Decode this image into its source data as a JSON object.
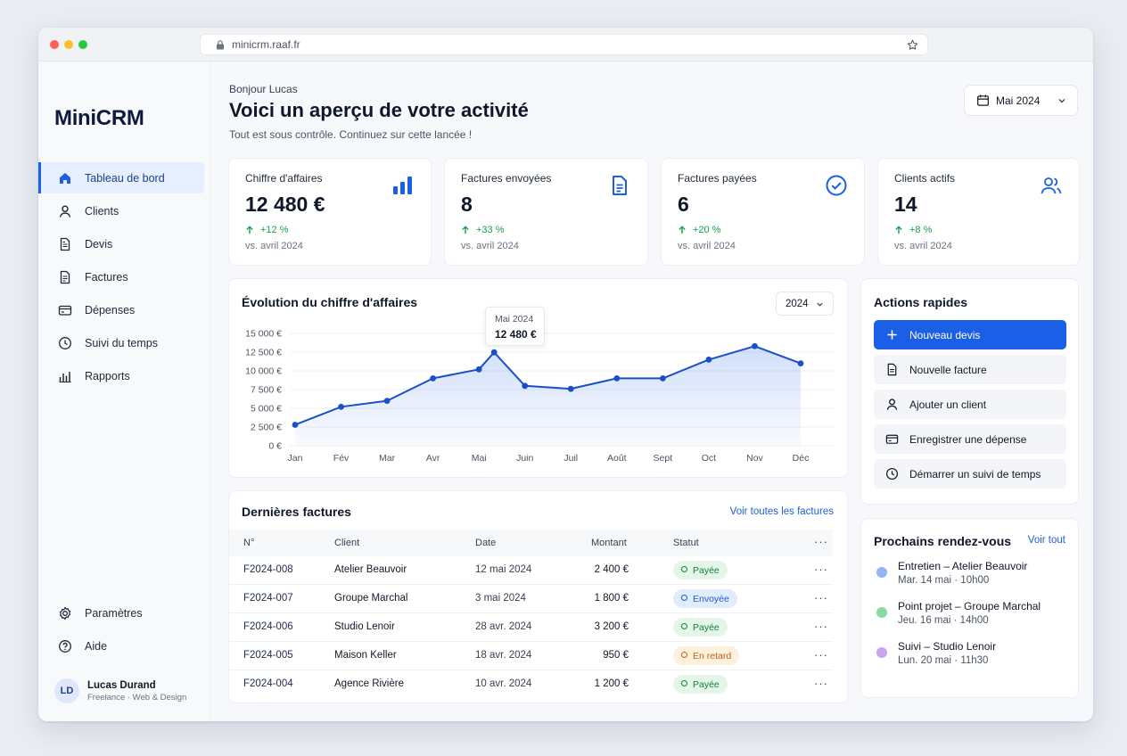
{
  "browser": {
    "url": "minicrm.raaf.fr"
  },
  "app": {
    "name": "MiniCRM"
  },
  "sidebar": {
    "items": [
      {
        "label": "Tableau de bord",
        "icon": "home-icon"
      },
      {
        "label": "Clients",
        "icon": "user-icon"
      },
      {
        "label": "Devis",
        "icon": "document-icon"
      },
      {
        "label": "Factures",
        "icon": "invoice-icon"
      },
      {
        "label": "Dépenses",
        "icon": "card-icon"
      },
      {
        "label": "Suivi du temps",
        "icon": "clock-icon"
      },
      {
        "label": "Rapports",
        "icon": "bar-chart-icon"
      }
    ],
    "bottom": [
      {
        "label": "Paramètres",
        "icon": "gear-icon"
      },
      {
        "label": "Aide",
        "icon": "help-icon"
      }
    ],
    "user": {
      "initials": "LD",
      "name": "Lucas Durand",
      "role": "Freelance · Web & Design"
    }
  },
  "header": {
    "greeting": "Bonjour Lucas",
    "title": "Voici un aperçu de votre activité",
    "subtitle": "Tout est sous contrôle. Continuez sur cette lancée !",
    "period": "Mai 2024"
  },
  "kpis": [
    {
      "label": "Chiffre d'affaires",
      "value": "12 480 €",
      "delta": "+12 %",
      "compare": "vs. avril 2024",
      "icon": "bar-chart-icon"
    },
    {
      "label": "Factures envoyées",
      "value": "8",
      "delta": "+33 %",
      "compare": "vs. avril 2024",
      "icon": "document-icon"
    },
    {
      "label": "Factures payées",
      "value": "6",
      "delta": "+20 %",
      "compare": "vs. avril 2024",
      "icon": "check-circle-icon"
    },
    {
      "label": "Clients actifs",
      "value": "14",
      "delta": "+8 %",
      "compare": "vs. avril 2024",
      "icon": "users-icon"
    }
  ],
  "revenue_chart": {
    "title": "Évolution du chiffre d'affaires",
    "year": "2024",
    "tooltip": {
      "label": "Mai 2024",
      "value": "12 480 €"
    }
  },
  "chart_data": {
    "type": "area",
    "title": "Évolution du chiffre d'affaires",
    "categories": [
      "Jan",
      "Fév",
      "Mar",
      "Avr",
      "Mai",
      "Juin",
      "Juil",
      "Août",
      "Sept",
      "Oct",
      "Nov",
      "Déc"
    ],
    "x": [
      "Jan",
      "Fév",
      "Mar",
      "Avr",
      "Mai",
      "Mai",
      "Juin",
      "Juil",
      "Août",
      "Sept",
      "Oct",
      "Nov",
      "Déc"
    ],
    "values": [
      2800,
      5200,
      6000,
      9000,
      10200,
      12480,
      8000,
      7600,
      9000,
      9000,
      11500,
      13300,
      11000
    ],
    "x_offsets": [
      0,
      0,
      0,
      0,
      0,
      0.33,
      0,
      0,
      0,
      0,
      0,
      0,
      0
    ],
    "ylim": [
      0,
      15000
    ],
    "yticks": [
      "0 €",
      "2 500 €",
      "5 000 €",
      "7 500 €",
      "10 000 €",
      "12 500 €",
      "15 000 €"
    ],
    "color": "#1a4fc7",
    "grid": true
  },
  "invoices": {
    "title": "Dernières factures",
    "view_all": "Voir toutes les factures",
    "columns": {
      "number": "N°",
      "client": "Client",
      "date": "Date",
      "amount": "Montant",
      "status": "Statut"
    },
    "rows": [
      {
        "number": "F2024-008",
        "client": "Atelier Beauvoir",
        "date": "12 mai 2024",
        "amount": "2 400 €",
        "status": "Payée",
        "status_type": "paid"
      },
      {
        "number": "F2024-007",
        "client": "Groupe Marchal",
        "date": "3 mai 2024",
        "amount": "1 800 €",
        "status": "Envoyée",
        "status_type": "sent"
      },
      {
        "number": "F2024-006",
        "client": "Studio Lenoir",
        "date": "28 avr. 2024",
        "amount": "3 200 €",
        "status": "Payée",
        "status_type": "paid"
      },
      {
        "number": "F2024-005",
        "client": "Maison Keller",
        "date": "18 avr. 2024",
        "amount": "950 €",
        "status": "En retard",
        "status_type": "late"
      },
      {
        "number": "F2024-004",
        "client": "Agence Rivière",
        "date": "10 avr. 2024",
        "amount": "1 200 €",
        "status": "Payée",
        "status_type": "paid"
      }
    ]
  },
  "quick_actions": {
    "title": "Actions rapides",
    "items": [
      {
        "label": "Nouveau devis",
        "icon": "plus-icon"
      },
      {
        "label": "Nouvelle facture",
        "icon": "document-icon"
      },
      {
        "label": "Ajouter un client",
        "icon": "user-icon"
      },
      {
        "label": "Enregistrer une dépense",
        "icon": "card-icon"
      },
      {
        "label": "Démarrer un suivi de temps",
        "icon": "clock-icon"
      }
    ]
  },
  "appointments": {
    "title": "Prochains rendez-vous",
    "view_all": "Voir tout",
    "items": [
      {
        "title": "Entretien – Atelier Beauvoir",
        "when": "Mar. 14 mai · 10h00",
        "color": "#93b4f5"
      },
      {
        "title": "Point projet – Groupe Marchal",
        "when": "Jeu. 16 mai · 14h00",
        "color": "#86dba0"
      },
      {
        "title": "Suivi – Studio Lenoir",
        "when": "Lun. 20 mai · 11h30",
        "color": "#c9a5f0"
      }
    ]
  }
}
